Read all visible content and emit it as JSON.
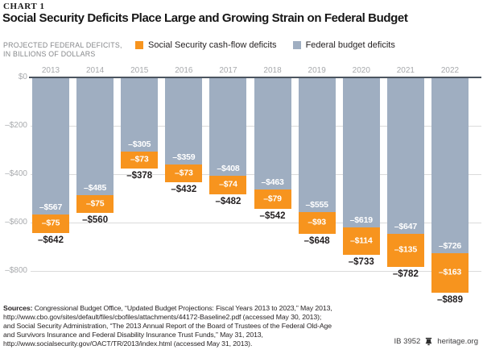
{
  "header": {
    "kicker": "CHART 1",
    "title": "Social Security Deficits Place Large and Growing Strain on Federal Budget"
  },
  "subtitle": {
    "line1": "PROJECTED FEDERAL DEFICITS,",
    "line2": "IN BILLIONS OF DOLLARS"
  },
  "legend": [
    {
      "label": "Social Security cash-flow deficits",
      "color": "#F7941E"
    },
    {
      "label": "Federal budget deficits",
      "color": "#9FAEC1"
    }
  ],
  "chart_data": {
    "type": "bar",
    "stacked": true,
    "title": "Social Security Deficits Place Large and Growing Strain on Federal Budget",
    "ylabel": "PROJECTED FEDERAL DEFICITS, IN BILLIONS OF DOLLARS",
    "categories": [
      "2013",
      "2014",
      "2015",
      "2016",
      "2017",
      "2018",
      "2019",
      "2020",
      "2021",
      "2022"
    ],
    "series": [
      {
        "name": "Federal budget deficits",
        "color": "#9FAEC1",
        "values": [
          -567,
          -485,
          -305,
          -359,
          -408,
          -463,
          -555,
          -619,
          -647,
          -726
        ]
      },
      {
        "name": "Social Security cash-flow deficits",
        "color": "#F7941E",
        "values": [
          -75,
          -75,
          -73,
          -73,
          -74,
          -79,
          -93,
          -114,
          -135,
          -163
        ]
      }
    ],
    "totals": [
      -642,
      -560,
      -378,
      -432,
      -482,
      -542,
      -648,
      -733,
      -782,
      -889
    ],
    "y_ticks": [
      "$0",
      "–$200",
      "–$400",
      "–$600",
      "–$800"
    ],
    "ylim": [
      -900,
      0
    ],
    "grid": true,
    "legend_position": "top",
    "colors": {
      "zero_axis": "#4C5560",
      "gridline": "#DBDBDB",
      "tick_text": "#A8AAAD"
    }
  },
  "footer": {
    "sources_label": "Sources:",
    "source_lines": [
      "Congressional Budget Office, “Updated Budget Projections: Fiscal Years 2013 to 2023,” May 2013,",
      "http://www.cbo.gov/sites/default/files/cbofiles/attachments/44172-Baseline2.pdf (accessed May 30, 2013);",
      "and Social Security Administration, “The 2013 Annual Report of the Board of Trustees of the Federal Old-Age",
      "and Survivors Insurance and Federal Disability Insurance Trust Funds,” May 31, 2013,",
      "http://www.socialsecurity.gov/OACT/TR/2013/index.html (accessed May 31, 2013)."
    ],
    "id": "IB 3952",
    "site": "heritage.org"
  }
}
